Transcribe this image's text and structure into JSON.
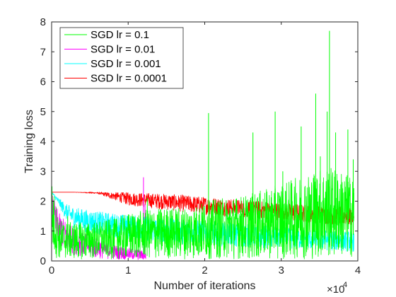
{
  "chart_data": {
    "type": "line",
    "xlabel": "Number of iterations",
    "ylabel": "Training loss",
    "x_multiplier_label": "×10",
    "x_multiplier_exponent": "4",
    "xlim": [
      0,
      40000
    ],
    "ylim": [
      0,
      8
    ],
    "xticks": [
      0,
      10000,
      20000,
      30000,
      40000
    ],
    "xtick_labels": [
      "0",
      "1",
      "2",
      "3",
      "4"
    ],
    "yticks": [
      0,
      1,
      2,
      3,
      4,
      5,
      6,
      7,
      8
    ],
    "ytick_labels": [
      "0",
      "1",
      "2",
      "3",
      "4",
      "5",
      "6",
      "7",
      "8"
    ],
    "grid": false,
    "legend_position": "top-left",
    "series": [
      {
        "name": "SGD lr = 0.1",
        "color": "#00ff00",
        "x": [
          0,
          500,
          1000,
          2000,
          3000,
          5000,
          8000,
          10000,
          12000,
          15000,
          18000,
          20000,
          22000,
          25000,
          28000,
          30000,
          32000,
          34000,
          36000,
          38000,
          39500
        ],
        "low": [
          0.2,
          0.1,
          0.05,
          0.05,
          0.05,
          0.05,
          0.05,
          0.05,
          0.05,
          0.05,
          0.05,
          0.05,
          0.05,
          0.05,
          0.05,
          0.05,
          0.05,
          0.05,
          0.05,
          0.1,
          0.1
        ],
        "high": [
          2.7,
          2.0,
          1.4,
          1.3,
          1.3,
          1.3,
          1.4,
          1.6,
          1.7,
          1.8,
          1.8,
          2.0,
          2.1,
          2.2,
          2.4,
          2.6,
          2.8,
          3.0,
          3.2,
          3.0,
          2.8
        ],
        "spikes": [
          [
            2100,
            1.5
          ],
          [
            12500,
            2.1
          ],
          [
            20500,
            4.95
          ],
          [
            26300,
            4.3
          ],
          [
            29200,
            5.0
          ],
          [
            30200,
            3.0
          ],
          [
            32600,
            4.5
          ],
          [
            34500,
            5.6
          ],
          [
            35100,
            3.5
          ],
          [
            36000,
            5.0
          ],
          [
            36300,
            7.7
          ],
          [
            37100,
            4.3
          ],
          [
            38700,
            4.4
          ],
          [
            39400,
            3.4
          ]
        ]
      },
      {
        "name": "SGD lr = 0.01",
        "color": "#ff00ff",
        "x": [
          0,
          500,
          1000,
          2000,
          3000,
          4000,
          5000,
          6000,
          7000,
          8000,
          9000,
          10000,
          11000,
          12000,
          12300
        ],
        "low": [
          1.5,
          0.7,
          0.5,
          0.3,
          0.2,
          0.15,
          0.1,
          0.08,
          0.06,
          0.05,
          0.04,
          0.03,
          0.02,
          0.02,
          0.02
        ],
        "high": [
          2.3,
          1.9,
          1.6,
          1.3,
          1.1,
          0.95,
          0.85,
          0.75,
          0.65,
          0.55,
          0.5,
          0.45,
          0.4,
          0.35,
          0.3
        ],
        "spikes": [
          [
            12000,
            2.8
          ],
          [
            12200,
            1.9
          ]
        ]
      },
      {
        "name": "SGD lr = 0.001",
        "color": "#00ffff",
        "x": [
          0,
          1000,
          2000,
          3000,
          5000,
          8000,
          10000,
          15000,
          20000,
          25000,
          30000,
          35000,
          39500
        ],
        "low": [
          2.3,
          1.8,
          1.3,
          1.1,
          0.9,
          0.8,
          0.7,
          0.6,
          0.5,
          0.45,
          0.4,
          0.35,
          0.3
        ],
        "high": [
          2.3,
          2.1,
          1.9,
          1.8,
          1.7,
          1.6,
          1.55,
          1.45,
          1.35,
          1.25,
          1.15,
          1.05,
          1.0
        ],
        "spikes": []
      },
      {
        "name": "SGD lr = 0.0001",
        "color": "#ff0000",
        "x": [
          0,
          3000,
          6000,
          8000,
          10000,
          15000,
          20000,
          25000,
          30000,
          35000,
          39500
        ],
        "low": [
          2.3,
          2.3,
          2.25,
          2.05,
          1.85,
          1.7,
          1.55,
          1.45,
          1.35,
          1.25,
          1.15
        ],
        "high": [
          2.3,
          2.3,
          2.3,
          2.3,
          2.3,
          2.25,
          2.15,
          2.05,
          1.95,
          1.85,
          1.8
        ],
        "spikes": []
      }
    ]
  }
}
